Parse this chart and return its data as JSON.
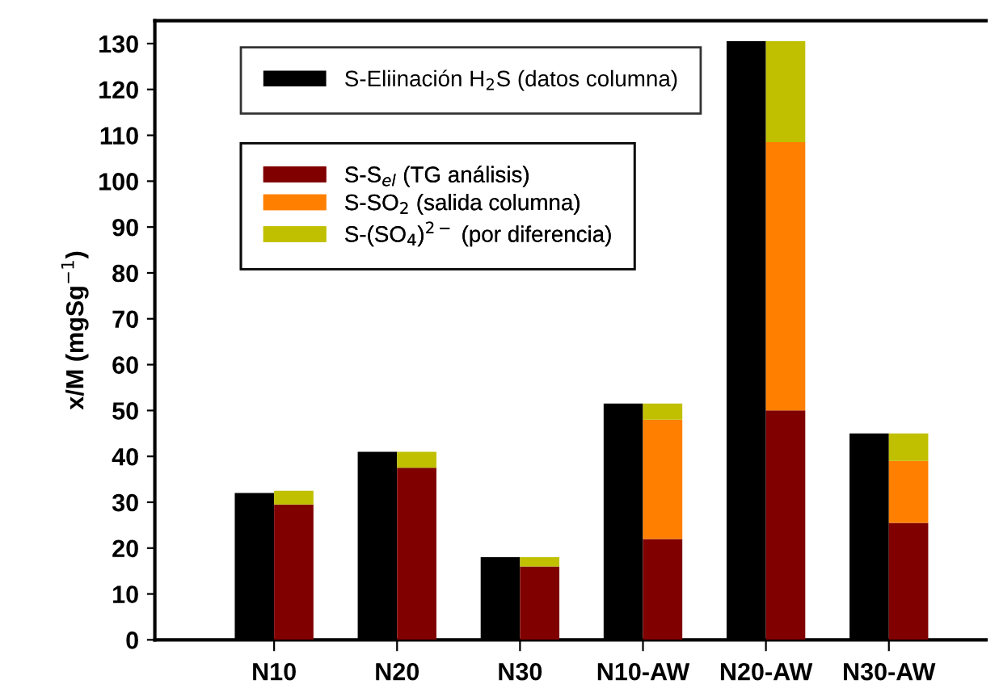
{
  "chart_data": {
    "type": "bar",
    "ylabel": "x/M (mgSg$^{−1}$)",
    "categories": [
      "N10",
      "N20",
      "N30",
      "N10-AW",
      "N20-AW",
      "N30-AW"
    ],
    "series": [
      {
        "name": "S-Eliinación H$_{2}$S (datos columna)",
        "color": "#000000",
        "values": [
          32,
          41,
          18,
          51.5,
          130.5,
          45
        ]
      },
      {
        "name": "S-S$_{el}$ (TG análisis)",
        "color": "#800000",
        "base": [
          0,
          0,
          0,
          0,
          0,
          0
        ],
        "values": [
          29.5,
          37.5,
          16,
          22,
          50,
          25.5
        ]
      },
      {
        "name": "S-SO$_{2}$ (salida columna)",
        "color": "#ff8000",
        "base": [
          null,
          null,
          null,
          22,
          50,
          25.5
        ],
        "values": [
          null,
          null,
          null,
          26,
          58.5,
          13.5
        ]
      },
      {
        "name": "S-(SO$_{4}$)$^{2−}$ (por diferencia)",
        "color": "#c0c000",
        "base": [
          29.5,
          37.5,
          16,
          48,
          108.5,
          39
        ],
        "values": [
          3,
          3.5,
          2,
          3.5,
          22,
          6
        ]
      }
    ],
    "ylim": [
      0,
      135
    ],
    "yticks": [
      0,
      10,
      20,
      30,
      40,
      50,
      60,
      70,
      80,
      90,
      100,
      110,
      120,
      130
    ],
    "legend": "top left"
  }
}
